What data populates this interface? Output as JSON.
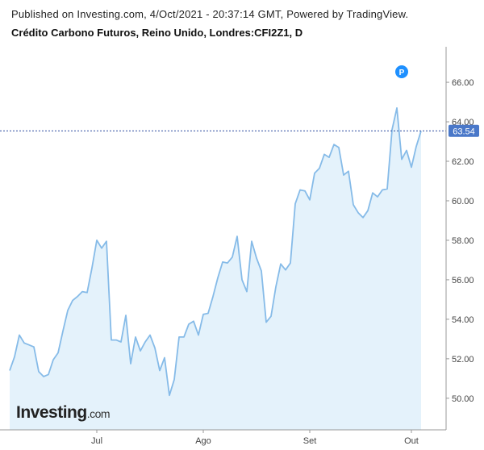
{
  "header": {
    "published": "Published on Investing.com, 4/Oct/2021 - 20:37:14 GMT, Powered by TradingView.",
    "title": "Crédito Carbono Futuros, Reino Unido, Londres:CFI2Z1, D"
  },
  "logo": {
    "brand": "Investing",
    "suffix": ".com"
  },
  "marker": {
    "label": "P"
  },
  "colors": {
    "line": "#86bbe8",
    "fill": "#e4f2fb",
    "axis": "#999999",
    "text": "#444444",
    "price_line": "#2a4a9f",
    "price_badge": "#4a78c9",
    "marker": "#1e90ff"
  },
  "chart_data": {
    "type": "area",
    "ylim": [
      48.4,
      67.8
    ],
    "grid": false,
    "y_ticks": [
      "50.00",
      "52.00",
      "54.00",
      "56.00",
      "58.00",
      "60.00",
      "62.00",
      "64.00",
      "66.00"
    ],
    "x_ticks": [
      {
        "label": "Jul",
        "index": 18
      },
      {
        "label": "Ago",
        "index": 40
      },
      {
        "label": "Set",
        "index": 62
      },
      {
        "label": "Out",
        "index": 83
      }
    ],
    "last_price_label": "63.54",
    "values": [
      51.4,
      52.1,
      53.2,
      52.8,
      52.7,
      52.6,
      51.35,
      51.1,
      51.2,
      51.95,
      52.3,
      53.4,
      54.45,
      54.95,
      55.15,
      55.4,
      55.35,
      56.6,
      58.0,
      57.6,
      57.95,
      52.95,
      52.95,
      52.85,
      54.2,
      51.75,
      53.1,
      52.4,
      52.85,
      53.2,
      52.55,
      51.4,
      52.05,
      50.15,
      50.95,
      53.1,
      53.1,
      53.75,
      53.9,
      53.2,
      54.25,
      54.3,
      55.15,
      56.1,
      56.9,
      56.85,
      57.15,
      58.2,
      56.0,
      55.4,
      57.95,
      57.1,
      56.45,
      53.85,
      54.15,
      55.65,
      56.8,
      56.5,
      56.85,
      59.85,
      60.55,
      60.5,
      60.05,
      61.4,
      61.65,
      62.35,
      62.2,
      62.85,
      62.7,
      61.3,
      61.5,
      59.8,
      59.4,
      59.15,
      59.5,
      60.4,
      60.2,
      60.55,
      60.6,
      63.6,
      64.7,
      62.1,
      62.55,
      61.7,
      62.75,
      63.54
    ]
  }
}
